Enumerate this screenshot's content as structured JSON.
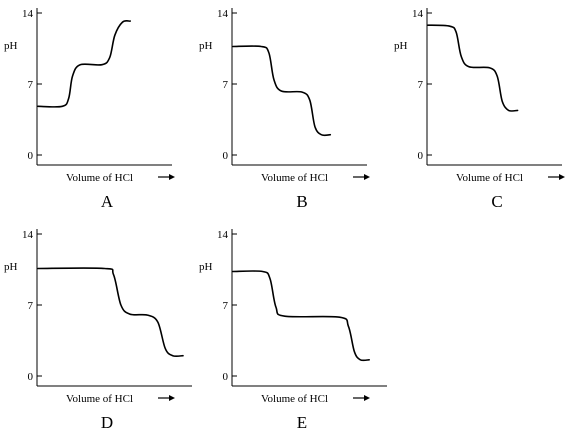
{
  "chart_data": [
    {
      "type": "line",
      "panel_label": "A",
      "xlabel": "Volume of HCl",
      "ylabel": "pH",
      "yticks": [
        0,
        7,
        14
      ],
      "ylim": [
        0,
        14
      ],
      "xlim": [
        0,
        1
      ],
      "series": [
        {
          "points": [
            [
              0,
              4.8
            ],
            [
              0.19,
              4.8
            ],
            [
              0.24,
              5.6
            ],
            [
              0.27,
              7.8
            ],
            [
              0.33,
              8.9
            ],
            [
              0.5,
              8.9
            ],
            [
              0.56,
              9.6
            ],
            [
              0.6,
              11.8
            ],
            [
              0.66,
              13.1
            ],
            [
              0.72,
              13.2
            ]
          ]
        }
      ]
    },
    {
      "type": "line",
      "panel_label": "B",
      "xlabel": "Volume of HCl",
      "ylabel": "pH",
      "yticks": [
        0,
        7,
        14
      ],
      "ylim": [
        0,
        14
      ],
      "xlim": [
        0,
        1
      ],
      "series": [
        {
          "points": [
            [
              0,
              10.7
            ],
            [
              0.22,
              10.7
            ],
            [
              0.28,
              10.1
            ],
            [
              0.32,
              7.4
            ],
            [
              0.38,
              6.3
            ],
            [
              0.54,
              6.2
            ],
            [
              0.6,
              5.4
            ],
            [
              0.64,
              2.8
            ],
            [
              0.69,
              2.0
            ],
            [
              0.76,
              2.0
            ]
          ]
        }
      ]
    },
    {
      "type": "line",
      "panel_label": "C",
      "xlabel": "Volume of HCl",
      "ylabel": "pH",
      "yticks": [
        0,
        7,
        14
      ],
      "ylim": [
        0,
        14
      ],
      "xlim": [
        0,
        1
      ],
      "series": [
        {
          "points": [
            [
              0,
              12.8
            ],
            [
              0.17,
              12.7
            ],
            [
              0.22,
              12.1
            ],
            [
              0.26,
              9.7
            ],
            [
              0.32,
              8.7
            ],
            [
              0.48,
              8.6
            ],
            [
              0.54,
              7.8
            ],
            [
              0.58,
              5.3
            ],
            [
              0.63,
              4.4
            ],
            [
              0.7,
              4.4
            ]
          ]
        }
      ]
    },
    {
      "type": "line",
      "panel_label": "D",
      "xlabel": "Volume of HCl",
      "ylabel": "pH",
      "yticks": [
        0,
        7,
        14
      ],
      "ylim": [
        0,
        14
      ],
      "xlim": [
        0,
        1
      ],
      "series": [
        {
          "points": [
            [
              0,
              10.6
            ],
            [
              0.45,
              10.6
            ],
            [
              0.51,
              10.0
            ],
            [
              0.56,
              7.0
            ],
            [
              0.62,
              6.1
            ],
            [
              0.74,
              6.0
            ],
            [
              0.81,
              5.3
            ],
            [
              0.86,
              2.7
            ],
            [
              0.91,
              2.0
            ],
            [
              0.98,
              2.0
            ]
          ]
        }
      ]
    },
    {
      "type": "line",
      "panel_label": "E",
      "xlabel": "Volume of HCl",
      "ylabel": "pH",
      "yticks": [
        0,
        7,
        14
      ],
      "ylim": [
        0,
        14
      ],
      "xlim": [
        0,
        1
      ],
      "series": [
        {
          "points": [
            [
              0,
              10.3
            ],
            [
              0.2,
              10.3
            ],
            [
              0.25,
              9.6
            ],
            [
              0.29,
              6.8
            ],
            [
              0.35,
              5.9
            ],
            [
              0.72,
              5.8
            ],
            [
              0.78,
              4.9
            ],
            [
              0.82,
              2.4
            ],
            [
              0.86,
              1.6
            ],
            [
              0.92,
              1.6
            ]
          ]
        }
      ]
    }
  ],
  "colors": {
    "ink": "#000000",
    "background": "#ffffff"
  }
}
